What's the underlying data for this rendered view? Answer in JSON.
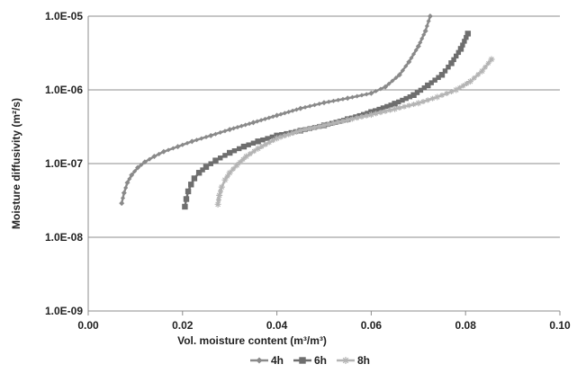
{
  "chart_data": {
    "type": "line",
    "xlabel": "Vol. moisture content (m³/m³)",
    "ylabel": "Moisture diffusivity (m²/s)",
    "xlim": [
      0,
      0.1
    ],
    "ylim": [
      1e-09,
      1e-05
    ],
    "yscale": "log",
    "grid": "horizontal major gridlines",
    "legend_position": "bottom",
    "x_ticks": [
      "0.00",
      "0.02",
      "0.04",
      "0.06",
      "0.08",
      "0.10"
    ],
    "y_ticks": [
      "1.0E-09",
      "1.0E-08",
      "1.0E-07",
      "1.0E-06",
      "1.0E-05"
    ],
    "series": [
      {
        "name": "4h",
        "marker": "diamond",
        "color": "#8a8a8a",
        "x": [
          0.0071,
          0.0076,
          0.0083,
          0.0092,
          0.0105,
          0.012,
          0.014,
          0.016,
          0.019,
          0.022,
          0.026,
          0.03,
          0.035,
          0.04,
          0.045,
          0.05,
          0.055,
          0.06,
          0.063,
          0.066,
          0.068,
          0.07,
          0.0715,
          0.0725
        ],
        "y": [
          2.9e-08,
          4e-08,
          5.5e-08,
          7e-08,
          8.8e-08,
          1.05e-07,
          1.25e-07,
          1.45e-07,
          1.7e-07,
          2e-07,
          2.4e-07,
          2.9e-07,
          3.6e-07,
          4.5e-07,
          5.6e-07,
          6.7e-07,
          7.7e-07,
          9e-07,
          1.1e-06,
          1.6e-06,
          2.4e-06,
          3.9e-06,
          6.3e-06,
          1e-05
        ]
      },
      {
        "name": "6h",
        "marker": "square",
        "color": "#6e6e6e",
        "x": [
          0.0205,
          0.0208,
          0.0212,
          0.0218,
          0.0225,
          0.0235,
          0.025,
          0.027,
          0.03,
          0.033,
          0.036,
          0.04,
          0.045,
          0.05,
          0.055,
          0.06,
          0.065,
          0.069,
          0.072,
          0.075,
          0.077,
          0.079,
          0.0805
        ],
        "y": [
          2.6e-08,
          3.3e-08,
          4.2e-08,
          5.2e-08,
          6.3e-08,
          7.5e-08,
          9e-08,
          1.1e-07,
          1.4e-07,
          1.7e-07,
          2e-07,
          2.4e-07,
          2.8e-07,
          3.3e-07,
          4e-07,
          5e-07,
          6.5e-07,
          8.5e-07,
          1.15e-06,
          1.6e-06,
          2.3e-06,
          3.6e-06,
          5.8e-06
        ]
      },
      {
        "name": "8h",
        "marker": "star",
        "color": "#b4b4b4",
        "x": [
          0.0275,
          0.0278,
          0.0283,
          0.029,
          0.03,
          0.0315,
          0.0335,
          0.036,
          0.04,
          0.045,
          0.05,
          0.055,
          0.06,
          0.065,
          0.07,
          0.074,
          0.078,
          0.081,
          0.0835,
          0.0855
        ],
        "y": [
          2.8e-08,
          3.7e-08,
          4.8e-08,
          6e-08,
          7.5e-08,
          9.5e-08,
          1.25e-07,
          1.6e-07,
          2.2e-07,
          2.8e-07,
          3.3e-07,
          3.9e-07,
          4.6e-07,
          5.5e-07,
          6.6e-07,
          8e-07,
          1e-06,
          1.3e-06,
          1.8e-06,
          2.6e-06
        ]
      }
    ]
  }
}
